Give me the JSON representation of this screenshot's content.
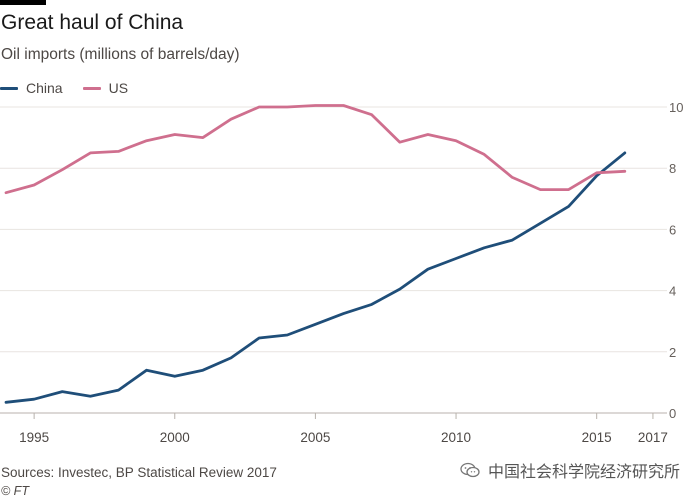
{
  "header": {
    "title": "Great haul of China",
    "subtitle": "Oil imports (millions of barrels/day)"
  },
  "legend": [
    {
      "label": "China",
      "color": "#1f4e79"
    },
    {
      "label": "US",
      "color": "#cf6f8e"
    }
  ],
  "footer": {
    "source": "Sources: Investec, BP Statistical Review 2017",
    "credit": "© FT"
  },
  "watermark": {
    "text": "中国社会科学院经济研究所",
    "icon": "wechat-icon"
  },
  "chart_data": {
    "type": "line",
    "title": "Great haul of China",
    "subtitle": "Oil imports (millions of barrels/day)",
    "x": [
      1994,
      1995,
      1996,
      1997,
      1998,
      1999,
      2000,
      2001,
      2002,
      2003,
      2004,
      2005,
      2006,
      2007,
      2008,
      2009,
      2010,
      2011,
      2012,
      2013,
      2014,
      2015,
      2016,
      2017
    ],
    "xlim": [
      1994,
      2017.5
    ],
    "ylim": [
      0,
      10
    ],
    "x_ticks": [
      {
        "value": 1995,
        "label": "1995"
      },
      {
        "value": 2000,
        "label": "2000"
      },
      {
        "value": 2005,
        "label": "2005"
      },
      {
        "value": 2010,
        "label": "2010"
      },
      {
        "value": 2015,
        "label": "2015"
      },
      {
        "value": 2017,
        "label": "2017"
      }
    ],
    "y_ticks": [
      0,
      2,
      4,
      6,
      8,
      10
    ],
    "y_tick_labels": [
      "0",
      "2",
      "4",
      "6",
      "8",
      "10"
    ],
    "y_axis_side": "right",
    "grid": "horizontal",
    "legend_position": "top-left",
    "series": [
      {
        "name": "China",
        "color": "#1f4e79",
        "values": [
          0.35,
          0.45,
          0.7,
          0.55,
          0.75,
          1.4,
          1.2,
          1.4,
          1.8,
          2.45,
          2.55,
          2.9,
          3.25,
          3.55,
          4.05,
          4.7,
          5.05,
          5.4,
          5.65,
          6.2,
          6.75,
          7.75,
          8.5,
          null
        ]
      },
      {
        "name": "US",
        "color": "#cf6f8e",
        "values": [
          7.2,
          7.45,
          7.95,
          8.5,
          8.55,
          8.9,
          9.1,
          9.0,
          9.6,
          10.0,
          10.0,
          10.05,
          10.05,
          9.75,
          8.85,
          9.1,
          8.9,
          8.45,
          7.7,
          7.3,
          7.3,
          7.85,
          7.9,
          null
        ]
      }
    ]
  }
}
